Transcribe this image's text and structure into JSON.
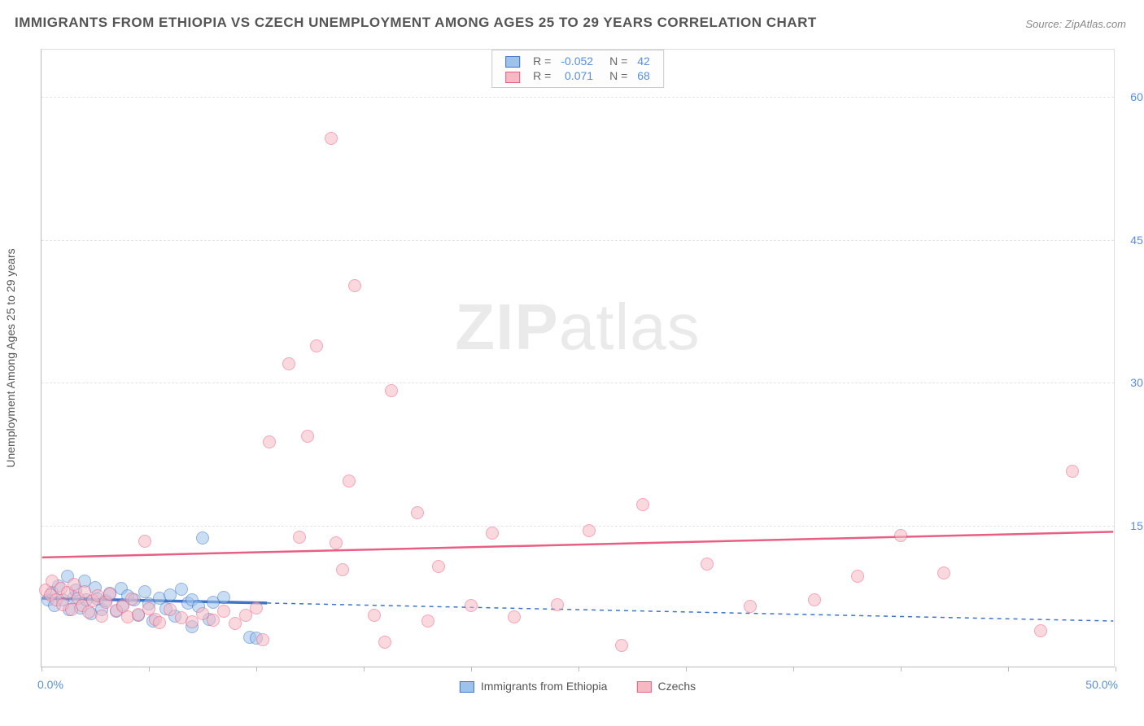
{
  "title": "IMMIGRANTS FROM ETHIOPIA VS CZECH UNEMPLOYMENT AMONG AGES 25 TO 29 YEARS CORRELATION CHART",
  "source": "Source: ZipAtlas.com",
  "watermark": {
    "bold": "ZIP",
    "light": "atlas"
  },
  "chart": {
    "type": "scatter",
    "y_axis_title": "Unemployment Among Ages 25 to 29 years",
    "xlim": [
      0,
      50
    ],
    "ylim": [
      0,
      65
    ],
    "x_ticks_at": [
      0,
      5,
      10,
      15,
      20,
      25,
      30,
      35,
      40,
      45,
      50
    ],
    "x_label_start": "0.0%",
    "x_label_end": "50.0%",
    "y_ticks": [
      {
        "v": 15,
        "label": "15.0%"
      },
      {
        "v": 30,
        "label": "30.0%"
      },
      {
        "v": 45,
        "label": "45.0%"
      },
      {
        "v": 60,
        "label": "60.0%"
      }
    ],
    "background_color": "#ffffff",
    "grid_color": "#e5e5e5",
    "point_radius": 8,
    "point_opacity": 0.55,
    "series": [
      {
        "key": "ethiopia",
        "label": "Immigrants from Ethiopia",
        "fill": "#9ec3eb",
        "stroke": "#3f74c7",
        "r": -0.052,
        "n": 42,
        "trend": {
          "y_at_x0": 7.2,
          "y_at_xmax": 4.8,
          "width": 3.5,
          "dash": "5,5",
          "solid_until_x": 10.5
        },
        "points": [
          [
            0.3,
            7.0
          ],
          [
            0.5,
            7.8
          ],
          [
            0.6,
            6.4
          ],
          [
            0.8,
            8.5
          ],
          [
            1.0,
            7.0
          ],
          [
            1.2,
            9.5
          ],
          [
            1.3,
            6.0
          ],
          [
            1.5,
            7.3
          ],
          [
            1.6,
            8.0
          ],
          [
            1.8,
            6.2
          ],
          [
            2.0,
            9.0
          ],
          [
            2.1,
            7.0
          ],
          [
            2.3,
            5.6
          ],
          [
            2.5,
            8.3
          ],
          [
            2.6,
            7.1
          ],
          [
            2.8,
            6.0
          ],
          [
            3.0,
            6.9
          ],
          [
            3.2,
            7.7
          ],
          [
            3.5,
            5.8
          ],
          [
            3.7,
            8.2
          ],
          [
            3.8,
            6.5
          ],
          [
            4.0,
            7.4
          ],
          [
            4.3,
            7.0
          ],
          [
            4.5,
            5.4
          ],
          [
            4.8,
            7.9
          ],
          [
            5.0,
            6.6
          ],
          [
            5.2,
            4.8
          ],
          [
            5.5,
            7.2
          ],
          [
            5.8,
            6.1
          ],
          [
            6.0,
            7.5
          ],
          [
            6.2,
            5.3
          ],
          [
            6.5,
            8.1
          ],
          [
            6.8,
            6.7
          ],
          [
            7.0,
            7.0
          ],
          [
            7.0,
            4.2
          ],
          [
            7.3,
            6.3
          ],
          [
            7.5,
            13.5
          ],
          [
            7.8,
            5.0
          ],
          [
            8.0,
            6.8
          ],
          [
            8.5,
            7.3
          ],
          [
            9.7,
            3.1
          ],
          [
            10.0,
            3.0
          ]
        ]
      },
      {
        "key": "czechs",
        "label": "Czechs",
        "fill": "#f5b9c4",
        "stroke": "#e85f84",
        "r": 0.071,
        "n": 68,
        "trend": {
          "y_at_x0": 11.5,
          "y_at_xmax": 14.2,
          "width": 2.5,
          "dash": null,
          "solid_until_x": 50
        },
        "points": [
          [
            0.2,
            8.0
          ],
          [
            0.4,
            7.5
          ],
          [
            0.5,
            9.0
          ],
          [
            0.7,
            7.0
          ],
          [
            0.9,
            8.2
          ],
          [
            1.0,
            6.5
          ],
          [
            1.2,
            7.8
          ],
          [
            1.4,
            6.0
          ],
          [
            1.5,
            8.6
          ],
          [
            1.7,
            7.2
          ],
          [
            1.9,
            6.4
          ],
          [
            2.0,
            7.9
          ],
          [
            2.2,
            5.7
          ],
          [
            2.4,
            6.9
          ],
          [
            2.6,
            7.4
          ],
          [
            2.8,
            5.3
          ],
          [
            3.0,
            6.8
          ],
          [
            3.2,
            7.6
          ],
          [
            3.5,
            5.9
          ],
          [
            3.8,
            6.3
          ],
          [
            4.0,
            5.2
          ],
          [
            4.2,
            7.1
          ],
          [
            4.5,
            5.5
          ],
          [
            4.8,
            13.2
          ],
          [
            5.0,
            6.1
          ],
          [
            5.3,
            5.0
          ],
          [
            5.5,
            4.6
          ],
          [
            6.0,
            6.0
          ],
          [
            6.5,
            5.1
          ],
          [
            7.0,
            4.7
          ],
          [
            7.5,
            5.6
          ],
          [
            8.0,
            4.9
          ],
          [
            8.5,
            5.8
          ],
          [
            9.0,
            4.5
          ],
          [
            9.5,
            5.4
          ],
          [
            10.0,
            6.2
          ],
          [
            10.3,
            2.8
          ],
          [
            10.6,
            23.6
          ],
          [
            11.5,
            31.8
          ],
          [
            12.0,
            13.6
          ],
          [
            12.4,
            24.2
          ],
          [
            12.8,
            33.7
          ],
          [
            13.5,
            55.5
          ],
          [
            13.7,
            13.0
          ],
          [
            14.0,
            10.2
          ],
          [
            14.3,
            19.5
          ],
          [
            14.6,
            40.0
          ],
          [
            15.5,
            5.4
          ],
          [
            16.0,
            2.6
          ],
          [
            16.3,
            29.0
          ],
          [
            17.5,
            16.2
          ],
          [
            18.0,
            4.8
          ],
          [
            18.5,
            10.5
          ],
          [
            20.0,
            6.4
          ],
          [
            21.0,
            14.0
          ],
          [
            22.0,
            5.2
          ],
          [
            24.0,
            6.5
          ],
          [
            25.5,
            14.3
          ],
          [
            27.0,
            2.2
          ],
          [
            28.0,
            17.0
          ],
          [
            31.0,
            10.8
          ],
          [
            33.0,
            6.3
          ],
          [
            36.0,
            7.0
          ],
          [
            38.0,
            9.5
          ],
          [
            40.0,
            13.8
          ],
          [
            42.0,
            9.8
          ],
          [
            46.5,
            3.8
          ],
          [
            48.0,
            20.5
          ]
        ]
      }
    ],
    "legend_top": {
      "r_label": "R =",
      "n_label": "N ="
    }
  }
}
